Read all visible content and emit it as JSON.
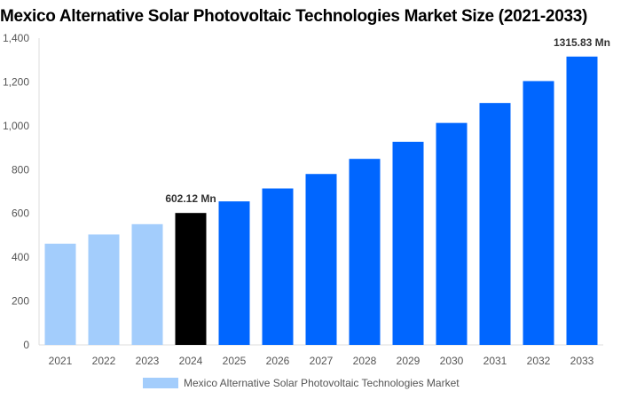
{
  "chart_data": {
    "type": "bar",
    "title": "Mexico Alternative Solar Photovoltaic Technologies Market Size (2021-2033)",
    "categories": [
      "2021",
      "2022",
      "2023",
      "2024",
      "2025",
      "2026",
      "2027",
      "2028",
      "2029",
      "2030",
      "2031",
      "2032",
      "2033"
    ],
    "series": [
      {
        "name": "Mexico Alternative Solar Photovoltaic Technologies Market",
        "values": [
          462,
          504,
          551,
          602.12,
          655,
          714,
          780,
          849,
          927,
          1013,
          1104,
          1204,
          1315.83
        ]
      }
    ],
    "bar_colors": [
      "#a3cdfc",
      "#a3cdfc",
      "#a3cdfc",
      "#000000",
      "#0066ff",
      "#0066ff",
      "#0066ff",
      "#0066ff",
      "#0066ff",
      "#0066ff",
      "#0066ff",
      "#0066ff",
      "#0066ff"
    ],
    "data_labels": {
      "3": "602.12 Mn",
      "12": "1315.83 Mn"
    },
    "yticks": [
      "0",
      "200",
      "400",
      "600",
      "800",
      "1,000",
      "1,200",
      "1,400"
    ],
    "ylim": [
      0,
      1400
    ],
    "xlabel": "",
    "ylabel": "",
    "grid": false,
    "legend_position": "bottom",
    "legend_color": "#a3cdfc"
  }
}
